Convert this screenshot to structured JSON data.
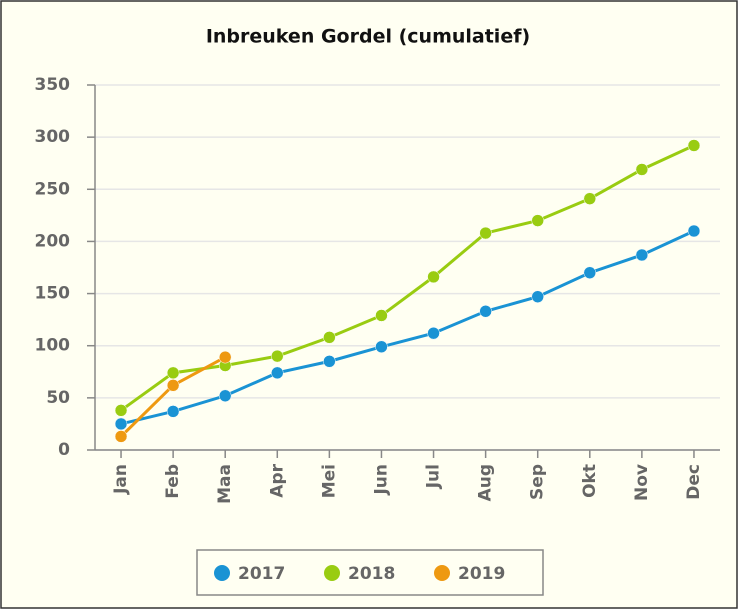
{
  "chart_data": {
    "type": "line",
    "title": "Inbreuken Gordel (cumulatief)",
    "categories": [
      "Jan",
      "Feb",
      "Maa",
      "Apr",
      "Mei",
      "Jun",
      "Jul",
      "Aug",
      "Sep",
      "Okt",
      "Nov",
      "Dec"
    ],
    "series": [
      {
        "name": "2017",
        "color": "#1a93d4",
        "values": [
          25,
          37,
          52,
          74,
          85,
          99,
          112,
          133,
          147,
          170,
          187,
          210
        ]
      },
      {
        "name": "2018",
        "color": "#99cc11",
        "values": [
          38,
          74,
          81,
          90,
          108,
          129,
          166,
          208,
          220,
          241,
          269,
          292
        ]
      },
      {
        "name": "2019",
        "color": "#ee9911",
        "values": [
          13,
          62,
          89,
          null,
          null,
          null,
          null,
          null,
          null,
          null,
          null,
          null
        ]
      }
    ],
    "ylim": [
      0,
      350
    ],
    "yticks": [
      0,
      50,
      100,
      150,
      200,
      250,
      300,
      350
    ],
    "grid": true,
    "legend": "bottom"
  }
}
